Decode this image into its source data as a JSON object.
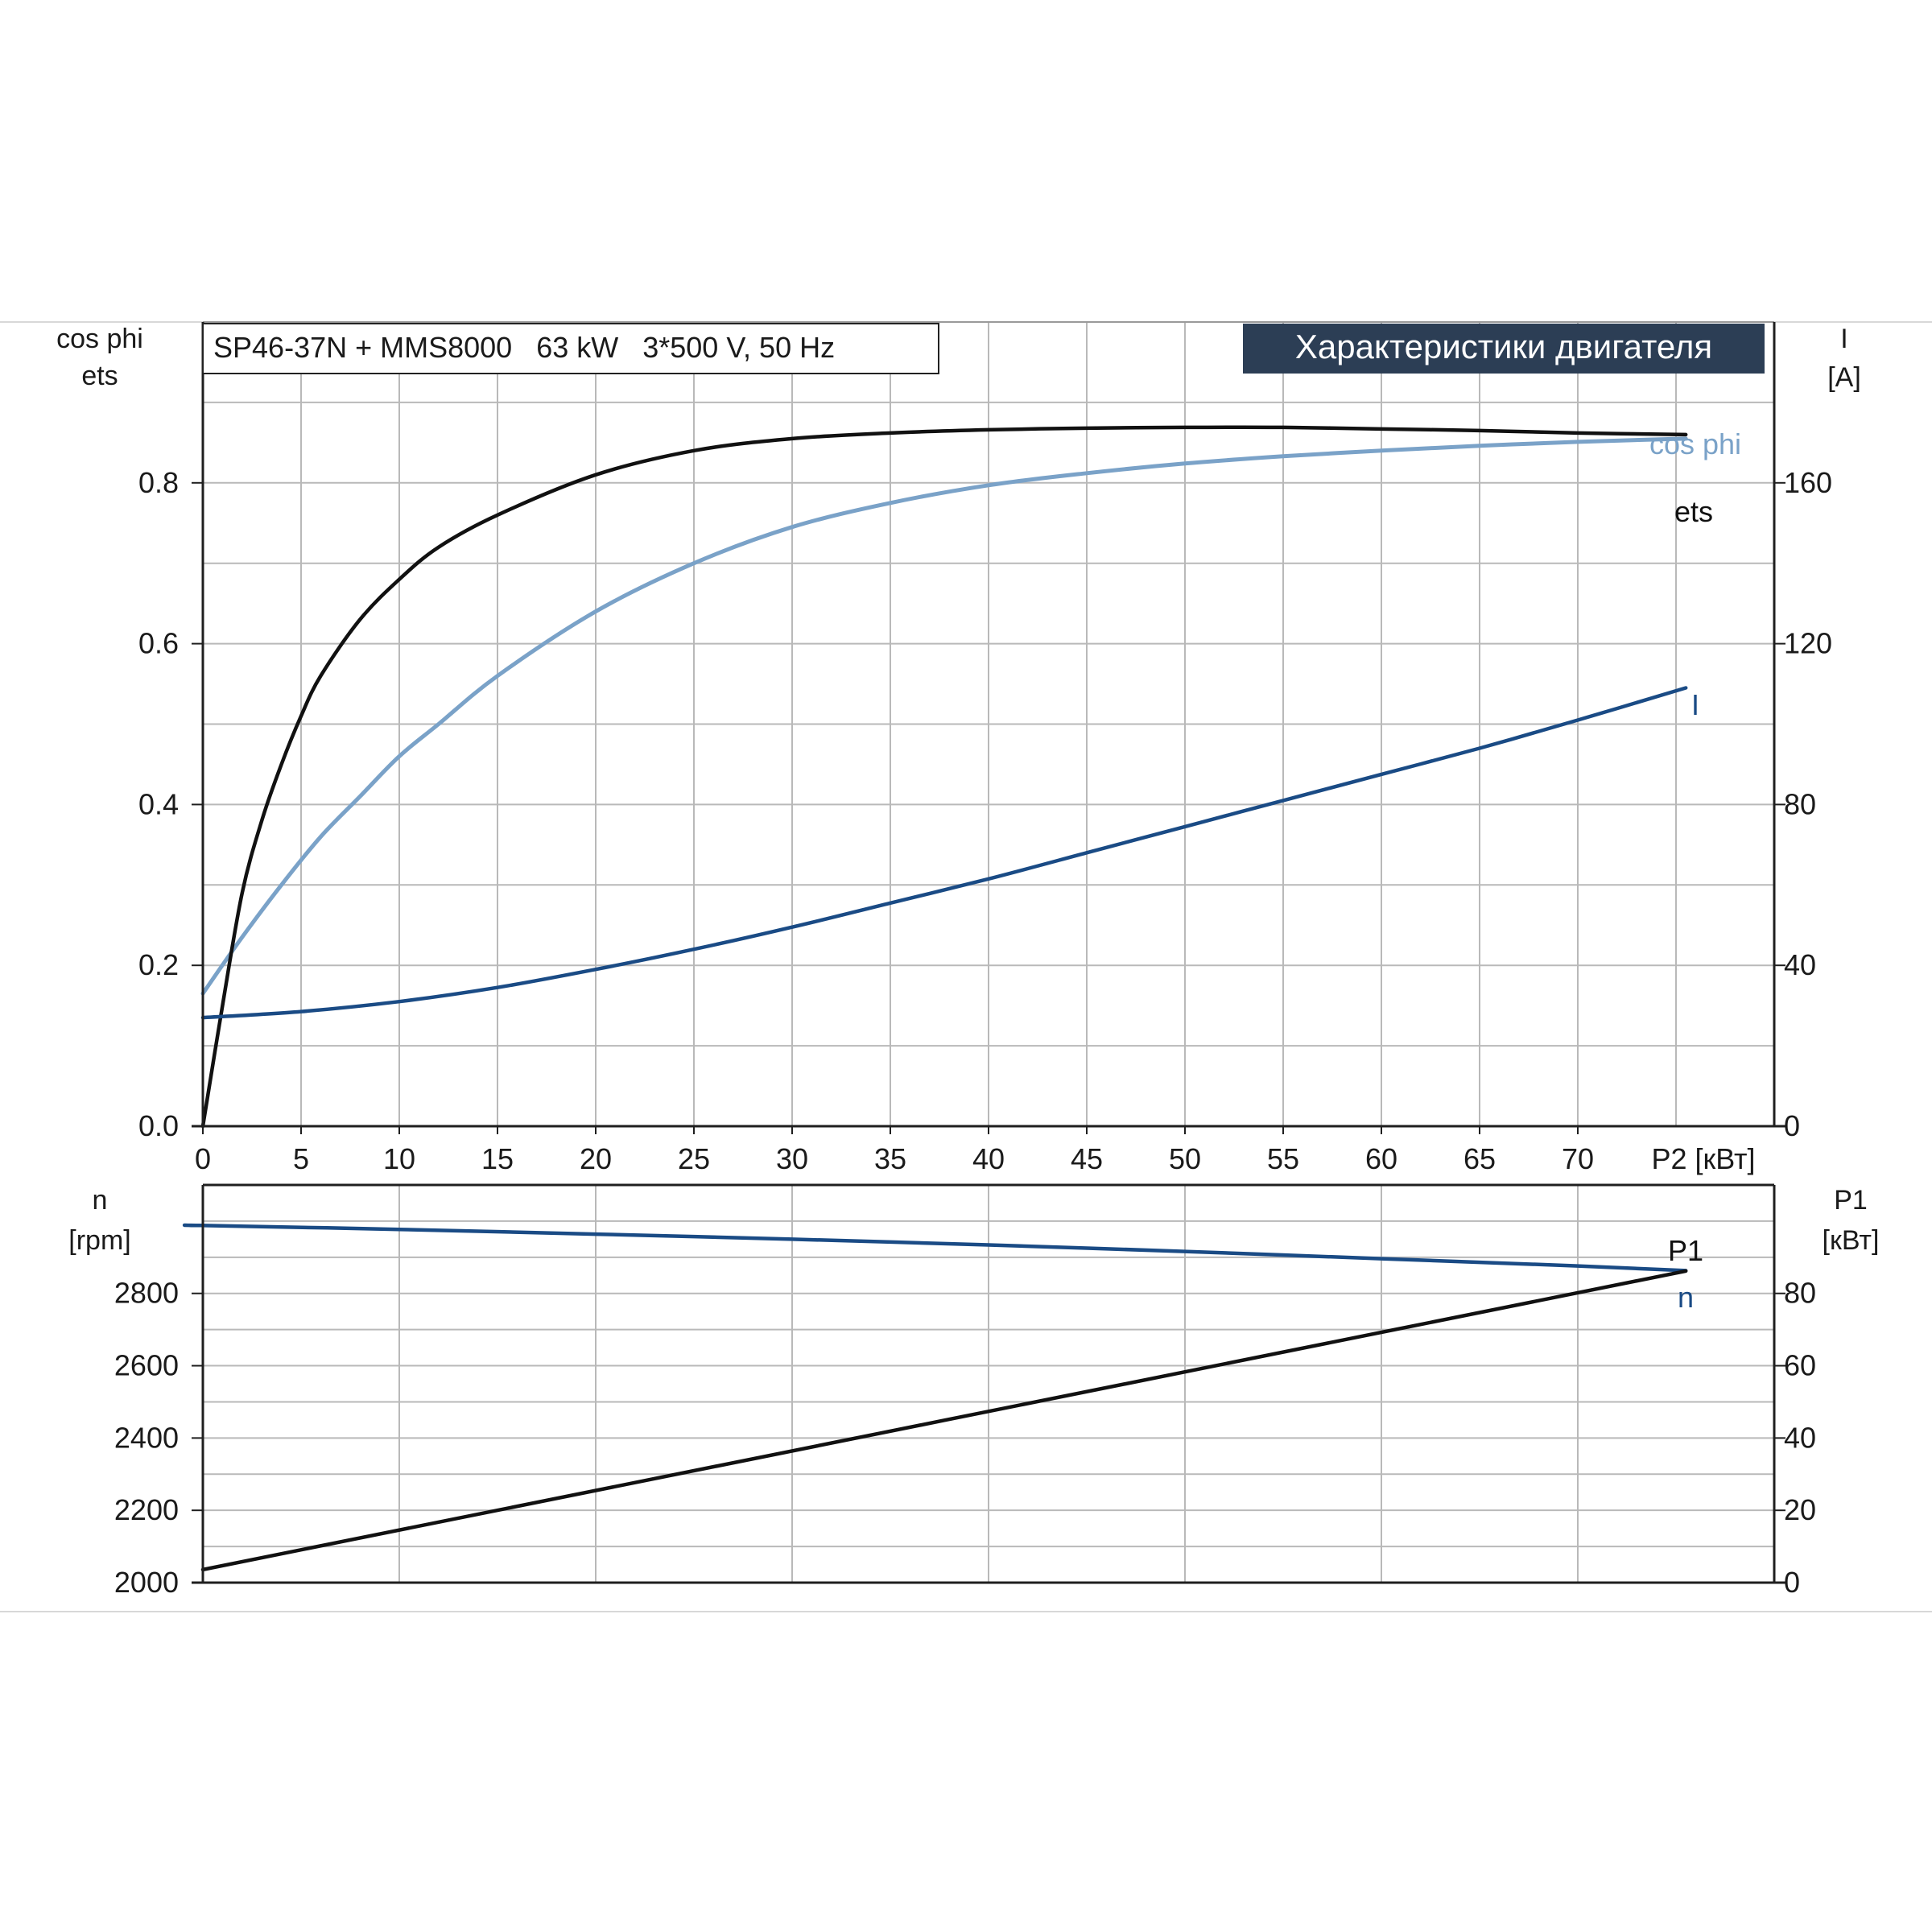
{
  "colors": {
    "grid": "#b9b9b9",
    "frame": "#9a9a9a",
    "axis": "#1f1f1f",
    "ets": "#111111",
    "cos_phi": "#7aa2c8",
    "current": "#1a4b85",
    "speed": "#1a4b85",
    "p1": "#111111",
    "badge_bg": "#2c3e55",
    "badge_text": "#ffffff",
    "text": "#1a1a1a"
  },
  "chart_data": [
    {
      "type": "line",
      "info_box": "SP46-37N + MMS8000   63 kW   3*500 V, 50 Hz",
      "badge": "Характеристики двигателя",
      "left_axis_label_1": "cos phi",
      "left_axis_label_2": "ets",
      "right_axis_label_1": "I",
      "right_axis_label_2": "[A]",
      "x_axis_unit": "P2 [кВт]",
      "xlim": [
        0,
        80
      ],
      "x_ticks": [
        "0",
        "5",
        "10",
        "15",
        "20",
        "25",
        "30",
        "35",
        "40",
        "45",
        "50",
        "55",
        "60",
        "65",
        "70"
      ],
      "ylim_left": [
        0,
        1.0
      ],
      "left_ticks": [
        "0.0",
        "0.2",
        "0.4",
        "0.6",
        "0.8"
      ],
      "ylim_right": [
        0,
        200
      ],
      "right_ticks": [
        "0",
        "40",
        "80",
        "120",
        "160"
      ],
      "grid": true,
      "series": [
        {
          "name": "ets",
          "axis": "left",
          "x": [
            0,
            1,
            2,
            3,
            4,
            5,
            6,
            8,
            10,
            12,
            15,
            20,
            25,
            30,
            35,
            40,
            45,
            50,
            55,
            60,
            65,
            70,
            75.5
          ],
          "y": [
            0.0,
            0.15,
            0.29,
            0.38,
            0.45,
            0.51,
            0.56,
            0.63,
            0.68,
            0.72,
            0.76,
            0.81,
            0.84,
            0.855,
            0.862,
            0.866,
            0.868,
            0.869,
            0.869,
            0.867,
            0.865,
            0.862,
            0.86
          ]
        },
        {
          "name": "cos phi",
          "axis": "left",
          "x": [
            0,
            2,
            4,
            6,
            8,
            10,
            12,
            15,
            20,
            25,
            30,
            35,
            40,
            45,
            50,
            55,
            60,
            65,
            70,
            75.5
          ],
          "y": [
            0.165,
            0.235,
            0.3,
            0.36,
            0.41,
            0.46,
            0.5,
            0.56,
            0.64,
            0.7,
            0.745,
            0.775,
            0.797,
            0.812,
            0.824,
            0.833,
            0.84,
            0.846,
            0.851,
            0.855
          ]
        },
        {
          "name": "I",
          "axis": "right",
          "x": [
            0,
            5,
            10,
            15,
            20,
            25,
            30,
            35,
            40,
            45,
            50,
            55,
            60,
            65,
            70,
            75.5
          ],
          "y": [
            27,
            28.5,
            31,
            34.5,
            39,
            44,
            49.5,
            55.5,
            61.5,
            68,
            74.5,
            81,
            87.5,
            94,
            101,
            109
          ]
        }
      ]
    },
    {
      "type": "line",
      "left_axis_label_1": "n",
      "left_axis_label_2": "[rpm]",
      "right_axis_label_1": "P1",
      "right_axis_label_2": "[кВт]",
      "xlim": [
        0,
        80
      ],
      "ylim_left": [
        2000,
        3100
      ],
      "left_ticks": [
        "2000",
        "2200",
        "2400",
        "2600",
        "2800"
      ],
      "ylim_right": [
        0,
        110
      ],
      "right_ticks": [
        "0",
        "20",
        "40",
        "60",
        "80"
      ],
      "grid": true,
      "series": [
        {
          "name": "n",
          "axis": "left",
          "x": [
            0,
            10,
            20,
            30,
            40,
            50,
            60,
            70,
            75.5
          ],
          "y": [
            2988,
            2977,
            2964,
            2950,
            2934,
            2916,
            2896,
            2876,
            2863
          ]
        },
        {
          "name": "P1",
          "axis": "right",
          "x": [
            0,
            75.5
          ],
          "y": [
            3.6,
            86.2
          ]
        }
      ]
    }
  ]
}
